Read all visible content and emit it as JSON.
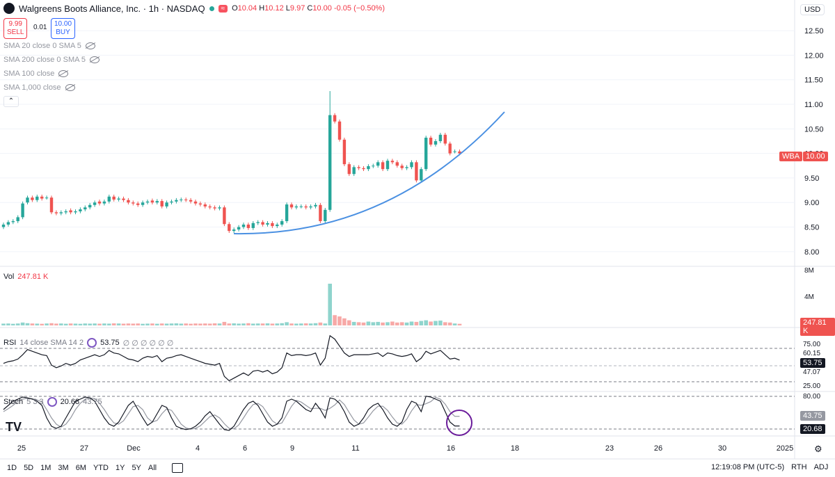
{
  "header": {
    "title": "Walgreens Boots Alliance, Inc. · 1h · NASDAQ",
    "ohlc": {
      "o_label": "O",
      "o": "10.04",
      "h_label": "H",
      "h": "10.12",
      "l_label": "L",
      "l": "9.97",
      "c_label": "C",
      "c": "10.00",
      "change": "-0.05 (−0.50%)"
    },
    "currency": "USD",
    "sell": {
      "price": "9.99",
      "label": "SELL"
    },
    "spread": "0.01",
    "buy": {
      "price": "10.00",
      "label": "BUY"
    }
  },
  "indicators": [
    {
      "label": "SMA 20 close 0 SMA 5"
    },
    {
      "label": "SMA 200 close 0 SMA 5"
    },
    {
      "label": "SMA 100 close"
    },
    {
      "label": "SMA 1,000 close"
    }
  ],
  "volume_pane": {
    "label": "Vol",
    "value": "247.81 K",
    "tag": "247.81 K",
    "axis": [
      "8M",
      "4M"
    ]
  },
  "rsi_pane": {
    "label": "RSI",
    "params": "14 close SMA 14 2",
    "value": "53.75",
    "extras": "∅ ∅ ∅ ∅ ∅ ∅",
    "axis": [
      "75.00",
      "60.15",
      "47.07",
      "25.00"
    ],
    "tag": "53.75"
  },
  "stoch_pane": {
    "label": "Stoch",
    "params": "5 3 3",
    "k": "20.68",
    "d": "43.75",
    "axis": [
      "80.00",
      "20.00"
    ],
    "tag_d": "43.75",
    "tag_k": "20.68"
  },
  "price_tag": {
    "symbol": "WBA",
    "value": "10.00"
  },
  "time_axis": [
    "25",
    "27",
    "Dec",
    "4",
    "6",
    "9",
    "11",
    "16",
    "18",
    "23",
    "26",
    "30",
    "2025"
  ],
  "bottom_bar": {
    "ranges": [
      "1D",
      "5D",
      "1M",
      "3M",
      "6M",
      "YTD",
      "1Y",
      "5Y",
      "All"
    ],
    "clock": "12:19:08 PM (UTC-5)",
    "rth": "RTH",
    "adj": "ADJ"
  },
  "colors": {
    "up": "#26a69a",
    "down": "#ef5350",
    "curve": "#4a90e2",
    "circle": "#6a1b9a"
  },
  "chart_data": {
    "type": "candlestick",
    "price_axis": {
      "ticks": [
        12.5,
        12.0,
        11.5,
        11.0,
        10.5,
        10.0,
        9.5,
        9.0,
        8.5,
        8.0
      ],
      "ylim": [
        7.7,
        12.7
      ]
    },
    "close_series": [
      8.55,
      8.6,
      8.62,
      8.7,
      8.98,
      9.1,
      9.05,
      9.12,
      9.08,
      9.1,
      8.8,
      8.78,
      8.8,
      8.82,
      8.8,
      8.82,
      8.86,
      8.9,
      8.95,
      9.0,
      8.98,
      9.02,
      9.12,
      9.06,
      9.08,
      9.05,
      9.0,
      8.98,
      8.95,
      9.0,
      9.02,
      9.0,
      9.03,
      8.92,
      9.0,
      9.02,
      9.05,
      9.06,
      9.05,
      9.02,
      8.98,
      8.96,
      8.92,
      8.9,
      8.88,
      8.9,
      8.56,
      8.42,
      8.45,
      8.5,
      8.55,
      8.48,
      8.58,
      8.6,
      8.55,
      8.58,
      8.52,
      8.55,
      8.62,
      8.96,
      8.9,
      8.92,
      8.92,
      8.9,
      8.92,
      8.95,
      8.62,
      8.85,
      10.78,
      10.65,
      10.28,
      9.78,
      9.58,
      9.72,
      9.7,
      9.68,
      9.74,
      9.75,
      9.82,
      9.68,
      9.85,
      9.82,
      9.75,
      9.7,
      9.72,
      9.82,
      9.45,
      9.68,
      10.32,
      10.18,
      10.25,
      10.38,
      10.2,
      10.0,
      10.04,
      10.0
    ],
    "open_series": [
      8.5,
      8.55,
      8.6,
      8.62,
      8.7,
      9.0,
      9.1,
      9.05,
      9.12,
      9.1,
      9.1,
      8.8,
      8.78,
      8.8,
      8.84,
      8.8,
      8.82,
      8.86,
      8.9,
      8.95,
      9.02,
      8.98,
      9.02,
      9.12,
      9.06,
      9.08,
      9.05,
      9.0,
      8.98,
      8.95,
      9.0,
      9.04,
      9.0,
      9.03,
      8.92,
      9.0,
      9.02,
      9.05,
      9.06,
      9.05,
      9.02,
      8.98,
      8.96,
      8.92,
      8.9,
      8.88,
      8.9,
      8.56,
      8.42,
      8.45,
      8.5,
      8.55,
      8.48,
      8.58,
      8.6,
      8.55,
      8.58,
      8.52,
      8.55,
      8.62,
      8.96,
      8.9,
      8.92,
      8.92,
      8.9,
      8.92,
      8.95,
      8.62,
      8.85,
      10.78,
      10.65,
      10.28,
      9.78,
      9.58,
      9.72,
      9.7,
      9.68,
      9.74,
      9.75,
      9.82,
      9.68,
      9.85,
      9.82,
      9.75,
      9.7,
      9.72,
      9.82,
      9.45,
      9.68,
      10.32,
      10.18,
      10.25,
      10.38,
      10.2,
      10.04,
      10.04
    ],
    "volume_series": [
      0.28,
      0.3,
      0.25,
      0.3,
      0.45,
      0.35,
      0.3,
      0.28,
      0.25,
      0.3,
      0.35,
      0.28,
      0.3,
      0.26,
      0.3,
      0.28,
      0.25,
      0.3,
      0.28,
      0.3,
      0.27,
      0.3,
      0.28,
      0.32,
      0.3,
      0.27,
      0.3,
      0.28,
      0.3,
      0.25,
      0.28,
      0.3,
      0.26,
      0.3,
      0.28,
      0.3,
      0.32,
      0.28,
      0.3,
      0.26,
      0.3,
      0.28,
      0.3,
      0.28,
      0.32,
      0.3,
      0.55,
      0.3,
      0.32,
      0.28,
      0.3,
      0.35,
      0.28,
      0.3,
      0.3,
      0.32,
      0.28,
      0.3,
      0.35,
      0.5,
      0.3,
      0.28,
      0.3,
      0.32,
      0.3,
      0.35,
      0.45,
      0.3,
      6.5,
      1.6,
      1.4,
      1.1,
      0.8,
      0.55,
      0.5,
      0.45,
      0.6,
      0.5,
      0.55,
      0.45,
      0.5,
      0.6,
      0.45,
      0.5,
      0.45,
      0.6,
      0.55,
      0.7,
      0.8,
      0.6,
      0.7,
      0.75,
      0.5,
      0.45,
      0.3,
      0.25
    ],
    "rsi_series": [
      50,
      52,
      53,
      55,
      60,
      66,
      64,
      62,
      60,
      59,
      48,
      45,
      47,
      50,
      48,
      50,
      54,
      56,
      58,
      60,
      58,
      60,
      65,
      62,
      61,
      58,
      55,
      54,
      52,
      56,
      58,
      57,
      59,
      52,
      56,
      57,
      59,
      60,
      58,
      56,
      54,
      52,
      50,
      49,
      48,
      50,
      35,
      30,
      33,
      36,
      39,
      36,
      41,
      42,
      40,
      42,
      38,
      40,
      45,
      62,
      59,
      60,
      60,
      59,
      60,
      62,
      48,
      56,
      82,
      78,
      70,
      62,
      58,
      60,
      60,
      60,
      60,
      61,
      62,
      58,
      62,
      61,
      59,
      58,
      59,
      61,
      52,
      56,
      64,
      61,
      63,
      65,
      60,
      55,
      56,
      53.75
    ],
    "stoch_k_series": [
      60,
      70,
      80,
      85,
      90,
      88,
      85,
      80,
      70,
      40,
      20,
      15,
      20,
      40,
      60,
      80,
      85,
      90,
      88,
      80,
      60,
      40,
      25,
      20,
      30,
      50,
      70,
      80,
      60,
      40,
      22,
      30,
      50,
      70,
      65,
      40,
      20,
      15,
      12,
      14,
      20,
      30,
      45,
      55,
      40,
      25,
      12,
      10,
      20,
      40,
      60,
      75,
      80,
      70,
      50,
      30,
      20,
      25,
      40,
      80,
      85,
      80,
      70,
      60,
      55,
      75,
      60,
      40,
      88,
      85,
      75,
      55,
      30,
      20,
      25,
      40,
      60,
      70,
      75,
      60,
      40,
      25,
      20,
      30,
      60,
      80,
      75,
      55,
      92,
      90,
      85,
      80,
      55,
      30,
      20.68,
      20.68
    ],
    "stoch_d_series": [
      55,
      62,
      70,
      80,
      85,
      87,
      86,
      83,
      78,
      60,
      40,
      25,
      18,
      25,
      40,
      60,
      75,
      85,
      88,
      86,
      75,
      60,
      42,
      28,
      25,
      33,
      50,
      67,
      70,
      60,
      40,
      30,
      34,
      50,
      62,
      58,
      42,
      25,
      16,
      13,
      15,
      21,
      32,
      43,
      47,
      40,
      26,
      15,
      14,
      23,
      40,
      58,
      72,
      75,
      67,
      50,
      33,
      25,
      28,
      48,
      68,
      82,
      78,
      70,
      62,
      63,
      63,
      58,
      63,
      71,
      83,
      72,
      53,
      35,
      25,
      28,
      42,
      57,
      68,
      68,
      58,
      42,
      28,
      25,
      37,
      57,
      72,
      70,
      74,
      79,
      89,
      85,
      73,
      55,
      43.75,
      43.75
    ]
  }
}
